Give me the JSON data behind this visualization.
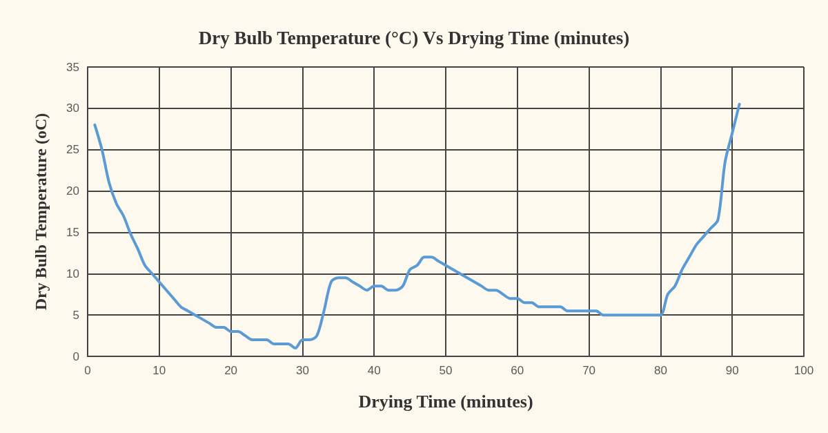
{
  "chart_data": {
    "type": "line",
    "title": "Dry Bulb Temperature (°C) Vs Drying Time (minutes)",
    "xlabel": "Drying Time (minutes)",
    "ylabel": "Dry Bulb Temperature (oC)",
    "x": [
      1,
      2,
      3,
      4,
      5,
      6,
      7,
      8,
      9,
      10,
      11,
      12,
      13,
      14,
      15,
      16,
      17,
      18,
      19,
      20,
      21,
      22,
      23,
      24,
      25,
      26,
      27,
      28,
      29,
      30,
      31,
      32,
      33,
      34,
      35,
      36,
      37,
      38,
      39,
      40,
      41,
      42,
      43,
      44,
      45,
      46,
      47,
      48,
      49,
      50,
      51,
      52,
      53,
      54,
      55,
      56,
      57,
      58,
      59,
      60,
      61,
      62,
      63,
      64,
      65,
      66,
      67,
      68,
      69,
      70,
      71,
      72,
      73,
      74,
      75,
      76,
      77,
      78,
      79,
      80,
      81,
      82,
      83,
      84,
      85,
      86,
      87,
      88,
      89,
      90,
      91
    ],
    "series": [
      {
        "color": "#5b9bd5",
        "values": [
          28,
          25,
          21,
          18.5,
          17,
          14.8,
          13,
          11,
          10,
          9,
          8,
          7,
          6,
          5.5,
          5,
          4.5,
          4,
          3.5,
          3.5,
          3,
          3,
          2.5,
          2,
          2,
          2,
          1.5,
          1.5,
          1.5,
          1,
          2,
          2,
          2.5,
          5.5,
          9,
          9.5,
          9.5,
          9,
          8.5,
          8,
          8.5,
          8.5,
          8,
          8,
          8.5,
          10.5,
          11,
          12,
          12,
          11.5,
          11,
          10.5,
          10,
          9.5,
          9,
          8.5,
          8,
          8,
          7.5,
          7,
          7,
          6.5,
          6.5,
          6,
          6,
          6,
          6,
          5.5,
          5.5,
          5.5,
          5.5,
          5.5,
          5,
          5,
          5,
          5,
          5,
          5,
          5,
          5,
          5,
          7.5,
          8.5,
          10.5,
          12,
          13.5,
          14.5,
          15.5,
          16.5,
          23.5,
          27,
          30.5
        ]
      }
    ],
    "xlim": [
      0,
      100
    ],
    "xticks": [
      0,
      10,
      20,
      30,
      40,
      50,
      60,
      70,
      80,
      90,
      100
    ],
    "ylim": [
      0,
      35
    ],
    "yticks": [
      0,
      5,
      10,
      15,
      20,
      25,
      30,
      35
    ],
    "grid": true,
    "marker": "none",
    "line_style": "solid"
  }
}
